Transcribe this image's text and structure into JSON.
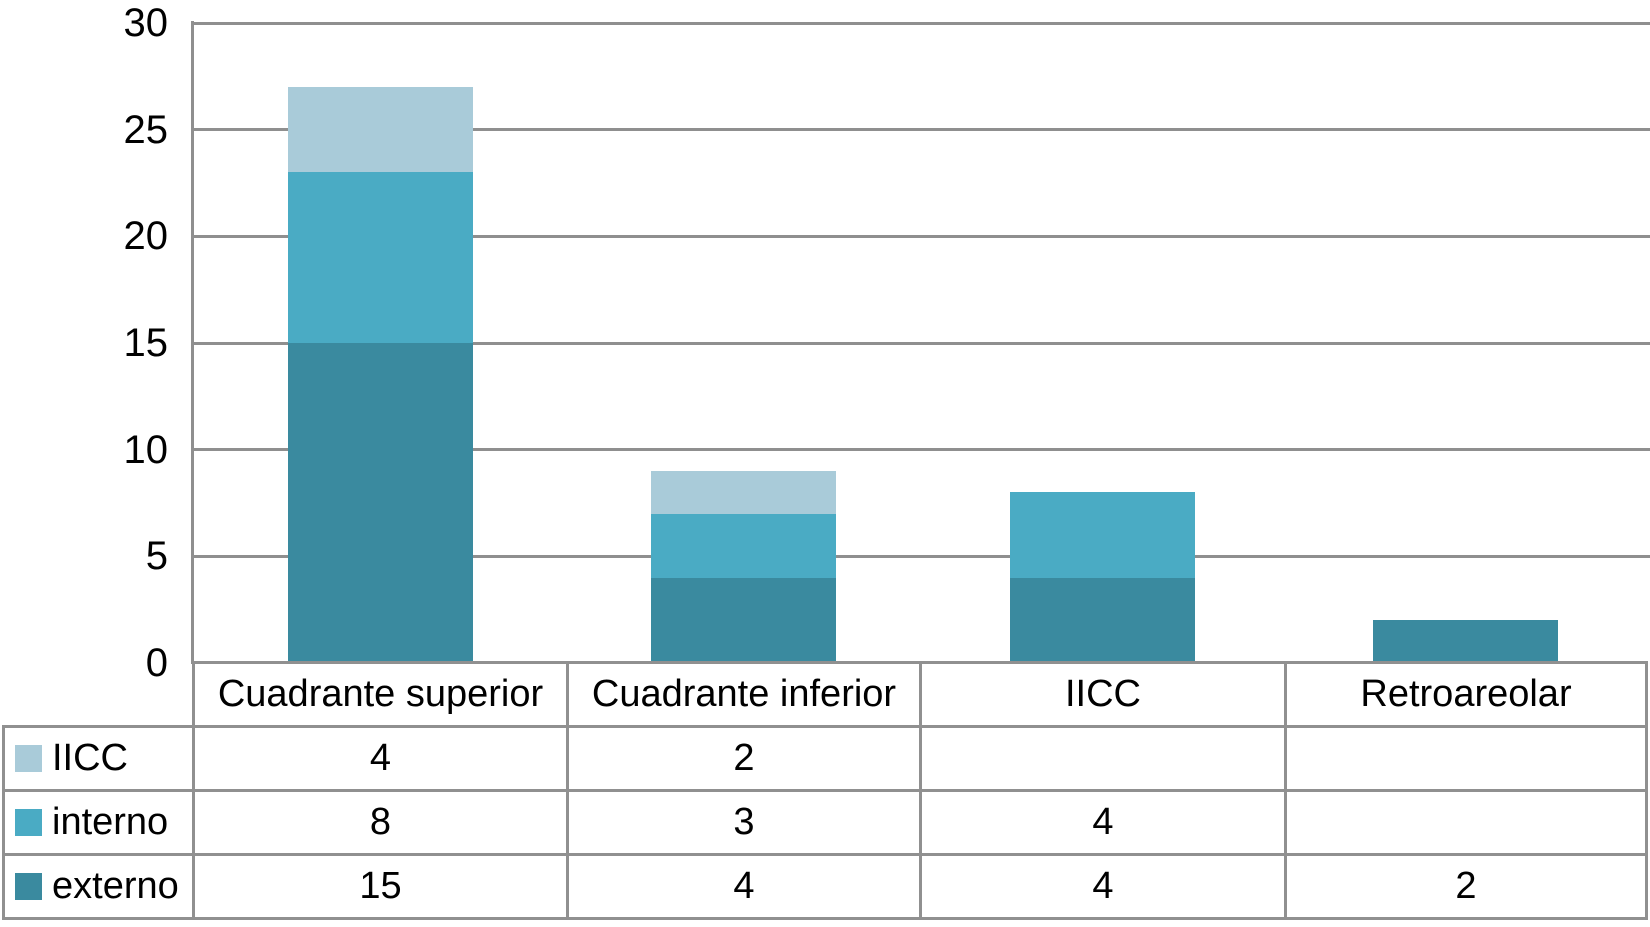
{
  "figure": {
    "background": "#ffffff",
    "text_color": "#000000"
  },
  "chart_data": {
    "type": "bar",
    "stacked": true,
    "title": "",
    "xlabel": "",
    "ylabel": "",
    "categories": [
      "Cuadrante superior",
      "Cuadrante inferior",
      "IICC",
      "Retroareolar"
    ],
    "series": [
      {
        "name": "externo",
        "color": "#3a8a9f",
        "values": [
          15,
          4,
          4,
          2
        ]
      },
      {
        "name": "interno",
        "color": "#4aabc4",
        "values": [
          8,
          3,
          4,
          0
        ]
      },
      {
        "name": "IICC",
        "color": "#a9cbd9",
        "values": [
          4,
          2,
          0,
          0
        ]
      }
    ],
    "ylim": [
      0,
      30
    ],
    "yticks": [
      0,
      5,
      10,
      15,
      20,
      25,
      30
    ],
    "grid": true,
    "gridline_color": "#8f8f8f",
    "legend_position": "table-rows-left"
  },
  "table": {
    "border_color": "#909090",
    "headers": [
      "Cuadrante superior",
      "Cuadrante inferior",
      "IICC",
      "Retroareolar"
    ],
    "rows": [
      {
        "label": "IICC",
        "series": "IICC",
        "values": [
          "4",
          "2",
          "",
          ""
        ]
      },
      {
        "label": "interno",
        "series": "interno",
        "values": [
          "8",
          "3",
          "4",
          ""
        ]
      },
      {
        "label": "externo",
        "series": "externo",
        "values": [
          "15",
          "4",
          "4",
          "2"
        ]
      }
    ]
  }
}
